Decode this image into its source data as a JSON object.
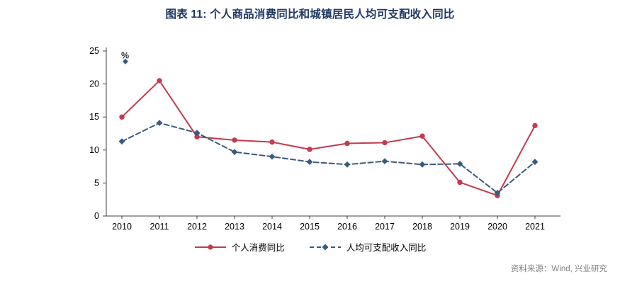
{
  "title": "图表 11: 个人商品消费同比和城镇居民人均可支配收入同比",
  "unit_label": "%",
  "source": "资料来源：Wind, 兴业研究",
  "colors": {
    "title": "#1F3864",
    "axis": "#404040",
    "tick_text": "#000000",
    "red_series": "#C43A4E",
    "blue_series": "#3A5A7E",
    "source_text": "#808080",
    "unit_text": "#333333"
  },
  "chart_data": {
    "type": "line",
    "categories": [
      "2010",
      "2011",
      "2012",
      "2013",
      "2014",
      "2015",
      "2016",
      "2017",
      "2018",
      "2019",
      "2020",
      "2021"
    ],
    "series": [
      {
        "name": "个人消费同比",
        "style": "solid",
        "marker": "circle",
        "color": "#C43A4E",
        "values": [
          15.0,
          20.5,
          12.0,
          11.5,
          11.2,
          10.1,
          11.0,
          11.1,
          12.1,
          5.1,
          3.1,
          13.7
        ]
      },
      {
        "name": "人均可支配收入同比",
        "style": "dashed",
        "marker": "diamond",
        "color": "#3A5A7E",
        "values": [
          11.3,
          14.1,
          12.6,
          9.7,
          9.0,
          8.2,
          7.8,
          8.3,
          7.8,
          7.9,
          3.5,
          8.2
        ]
      }
    ],
    "ylim": [
      0,
      25
    ],
    "yticks": [
      0,
      5,
      10,
      15,
      20,
      25
    ],
    "grid": false,
    "legend_position": "bottom",
    "annotation": {
      "text": "%",
      "marker_value": 23.4
    }
  }
}
